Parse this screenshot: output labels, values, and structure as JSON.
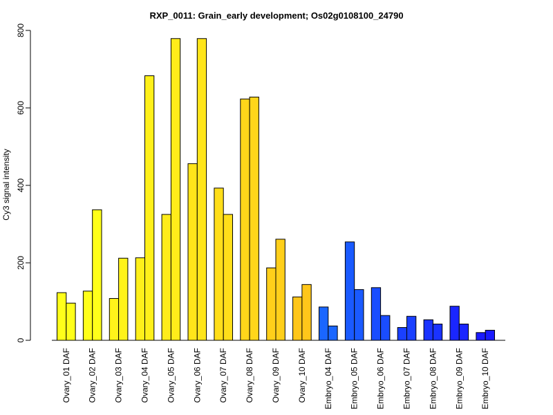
{
  "chart_data": {
    "type": "bar",
    "title": "RXP_0011: Grain_early development; Os02g0108100_24790",
    "xlabel": "",
    "ylabel": "Cy3 signal intensity",
    "ylim": [
      0,
      800
    ],
    "y_ticks": [
      "0",
      "200",
      "400",
      "600",
      "800"
    ],
    "grid": false,
    "categories": [
      "Ovary_01 DAF",
      "Ovary_02 DAF",
      "Ovary_03 DAF",
      "Ovary_04 DAF",
      "Ovary_05 DAF",
      "Ovary_06 DAF",
      "Ovary_07 DAF",
      "Ovary_08 DAF",
      "Ovary_09 DAF",
      "Ovary_10 DAF",
      "Embryo_04 DAF",
      "Embryo_05 DAF",
      "Embryo_06 DAF",
      "Embryo_07 DAF",
      "Embryo_08 DAF",
      "Embryo_09 DAF",
      "Embryo_10 DAF"
    ],
    "series": [
      {
        "values": [
          123,
          127,
          108,
          213,
          325,
          456,
          393,
          623,
          187,
          112,
          86,
          254,
          136,
          33,
          53,
          88,
          20
        ]
      },
      {
        "values": [
          96,
          337,
          212,
          683,
          779,
          779,
          325,
          628,
          261,
          144,
          37,
          131,
          64,
          62,
          42,
          42,
          26
        ]
      }
    ],
    "bar_colors": [
      "#FFFF1A",
      "#FFFF1A",
      "#FFF31A",
      "#FFF01A",
      "#FFEC1A",
      "#FFE51A",
      "#FFDE1A",
      "#FFD61A",
      "#FFCF1A",
      "#FFC61A",
      "#1A66FF",
      "#1A5AFF",
      "#1A4DFF",
      "#1A40FF",
      "#1A33FF",
      "#1A26FF",
      "#1A1AFF"
    ]
  }
}
